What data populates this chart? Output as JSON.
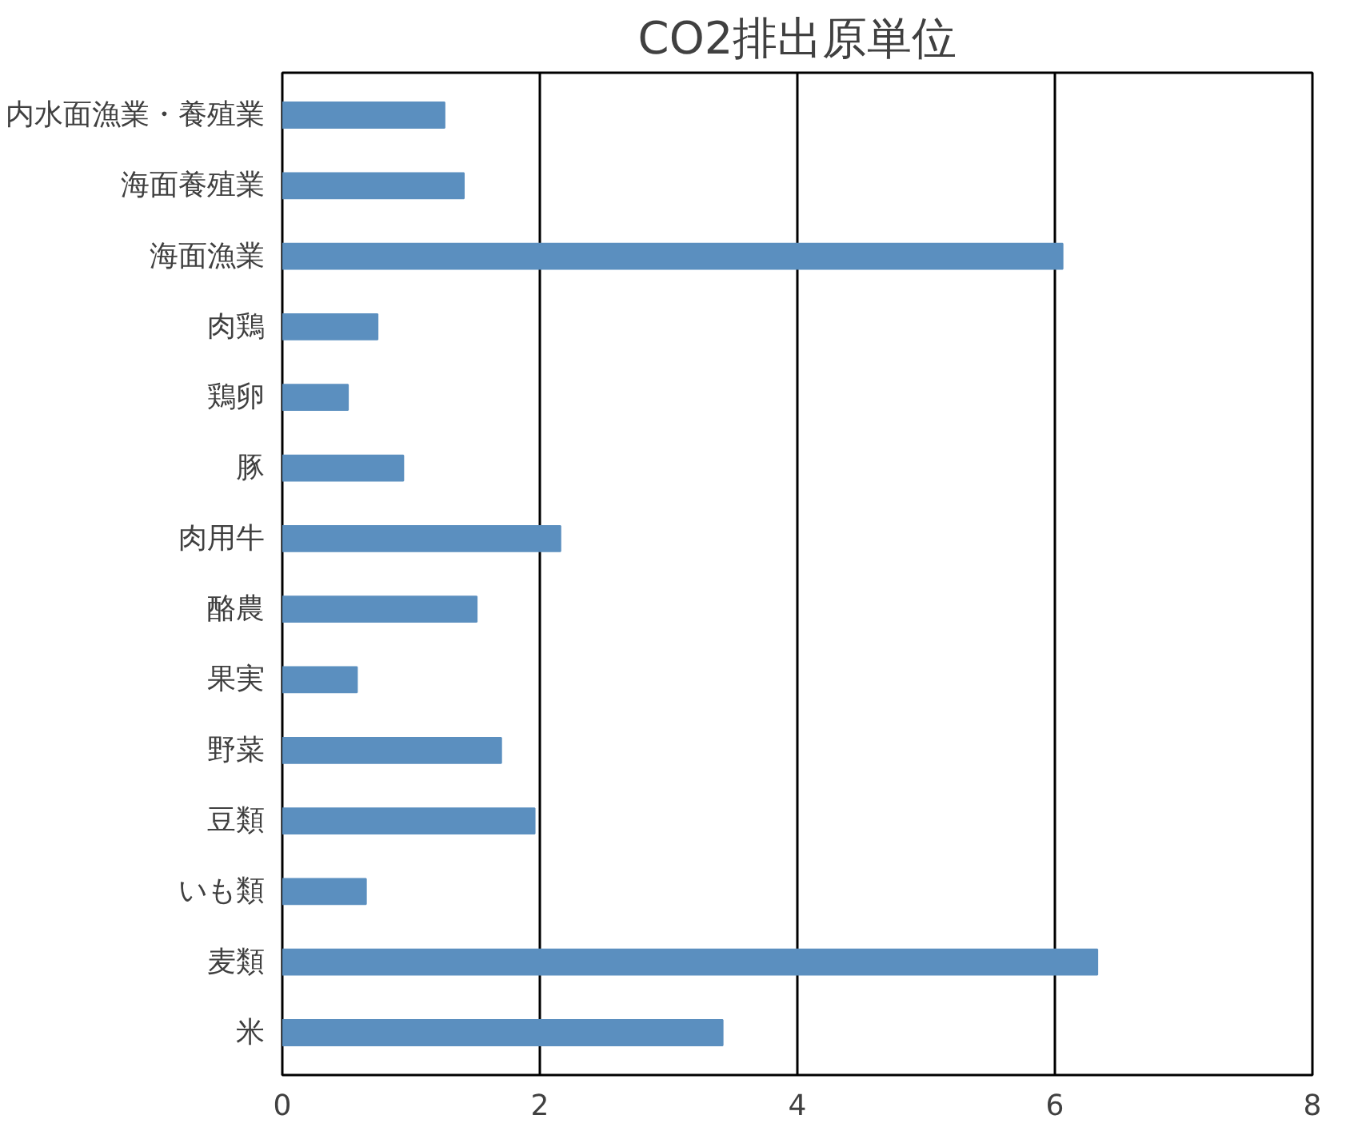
{
  "chart_data": {
    "type": "bar",
    "orientation": "horizontal",
    "title": "CO2排出原単位",
    "categories": [
      "内水面漁業・養殖業",
      "海面養殖業",
      "海面漁業",
      "肉鶏",
      "鶏卵",
      "豚",
      "肉用牛",
      "酪農",
      "果実",
      "野菜",
      "豆類",
      "いも類",
      "麦類",
      "米"
    ],
    "values": [
      1.26,
      1.41,
      6.06,
      0.74,
      0.51,
      0.94,
      2.16,
      1.51,
      0.58,
      1.7,
      1.96,
      0.65,
      6.33,
      3.42
    ],
    "color": "#5b8fbf",
    "xlim": [
      0,
      8
    ],
    "xticks": [
      0,
      2,
      4,
      6,
      8
    ],
    "grid": "x"
  }
}
